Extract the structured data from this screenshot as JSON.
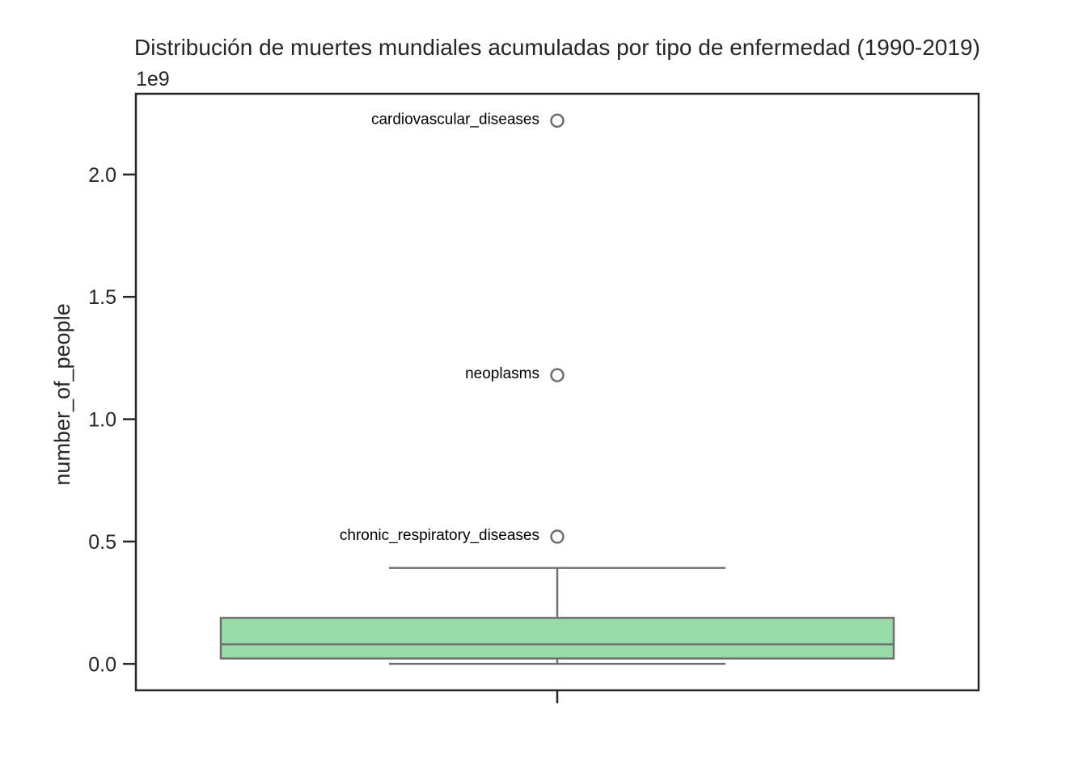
{
  "chart_data": {
    "type": "box",
    "title": "Distribución de muertes mundiales acumuladas por tipo de enfermedad (1990-2019)",
    "xlabel": "",
    "ylabel": "number_of_people",
    "y_offset_label": "1e9",
    "y_ticks": [
      0.0,
      0.5,
      1.0,
      1.5,
      2.0
    ],
    "y_tick_labels": [
      "0.0",
      "0.5",
      "1.0",
      "1.5",
      "2.0"
    ],
    "ylim": [
      -0.108,
      2.33
    ],
    "grid": false,
    "box": {
      "whisker_low": 0.0,
      "q1": 0.022,
      "median": 0.08,
      "q3": 0.188,
      "whisker_high": 0.392,
      "fill_color": "#98dba8",
      "edge_color": "#6e6e6e"
    },
    "outliers": [
      {
        "label": "cardiovascular_diseases",
        "value": 2.22
      },
      {
        "label": "neoplasms",
        "value": 1.18
      },
      {
        "label": "chronic_respiratory_diseases",
        "value": 0.52
      }
    ]
  }
}
